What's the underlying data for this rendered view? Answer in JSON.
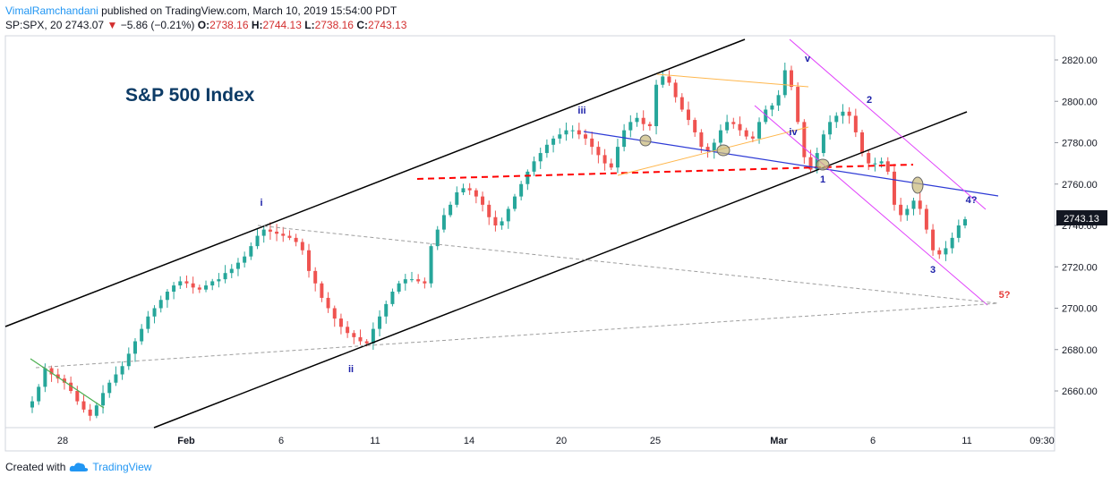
{
  "header": {
    "author": "VimalRamchandani",
    "published": " published on TradingView.com, March 10, 2019 15:54:00 PDT",
    "symbol": "SP:SPX, 20",
    "last": "2743.07",
    "arrow": "▼",
    "change": "−5.86 (−0.21%)",
    "o_label": "O:",
    "o_val": "2738.16",
    "h_label": "H:",
    "h_val": "2744.13",
    "l_label": "L:",
    "l_val": "2738.16",
    "c_label": "C:",
    "c_val": "2743.13"
  },
  "footer": {
    "created": "Created with",
    "brand": "TradingView"
  },
  "colors": {
    "up": "#26a69a",
    "down": "#ef5350",
    "red": "#ff0000",
    "blue": "#1e22aa",
    "magenta": "#e040fb",
    "orange": "#ffb74d",
    "channel": "#000000"
  },
  "chart_data": {
    "type": "candlestick",
    "title": "S&P 500 Index",
    "price_label": "2743.13",
    "ylim": [
      2640,
      2830
    ],
    "y_ticks": [
      "2820.00",
      "2800.00",
      "2780.00",
      "2760.00",
      "2740.00",
      "2720.00",
      "2700.00",
      "2680.00",
      "2660.00"
    ],
    "x_ticks": [
      "28",
      "Feb",
      "6",
      "11",
      "14",
      "20",
      "25",
      "Mar",
      "6",
      "11",
      "09:30"
    ],
    "wave_labels": [
      "i",
      "ii",
      "iii",
      "iv",
      "v",
      "1",
      "2",
      "3",
      "4?",
      "5?"
    ],
    "series": [
      {
        "name": "",
        "values": [
          2655,
          2662,
          2671,
          2668,
          2666,
          2664,
          2660,
          2655,
          2651,
          2648,
          2653,
          2659,
          2664,
          2668,
          2672,
          2678,
          2684,
          2690,
          2696,
          2700,
          2704,
          2708,
          2711,
          2713,
          2712,
          2710,
          2709,
          2711,
          2713,
          2714,
          2717,
          2719,
          2722,
          2725,
          2730,
          2735,
          2738,
          2737,
          2736,
          2735,
          2734,
          2732,
          2728,
          2718,
          2712,
          2705,
          2700,
          2695,
          2691,
          2688,
          2686,
          2684,
          2683,
          2690,
          2696,
          2702,
          2708,
          2712,
          2714,
          2714,
          2713,
          2712,
          2730,
          2738,
          2745,
          2750,
          2756,
          2758,
          2757,
          2754,
          2750,
          2744,
          2740,
          2742,
          2748,
          2754,
          2760,
          2766,
          2771,
          2775,
          2779,
          2782,
          2784,
          2786,
          2786,
          2784,
          2782,
          2778,
          2774,
          2770,
          2768,
          2778,
          2786,
          2790,
          2792,
          2789,
          2788,
          2808,
          2812,
          2809,
          2802,
          2796,
          2791,
          2785,
          2778,
          2776,
          2780,
          2786,
          2790,
          2789,
          2786,
          2783,
          2782,
          2790,
          2796,
          2798,
          2803,
          2815,
          2807,
          2790,
          2773,
          2767,
          2775,
          2784,
          2790,
          2793,
          2795,
          2793,
          2785,
          2775,
          2770,
          2770,
          2771,
          2766,
          2750,
          2745,
          2748,
          2752,
          2748,
          2738,
          2728,
          2726,
          2729,
          2734,
          2740,
          2743
        ]
      }
    ]
  }
}
